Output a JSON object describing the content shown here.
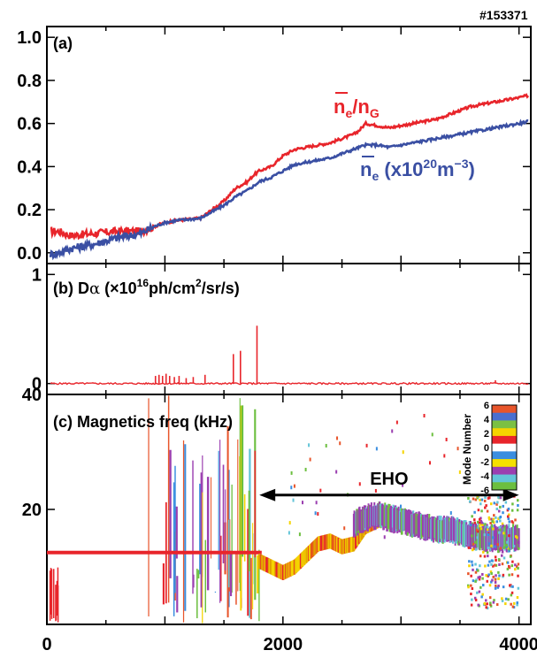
{
  "shot_number": "#153371",
  "x_axis": {
    "ticks": [
      0,
      2000,
      4000
    ],
    "range": [
      0,
      4100
    ]
  },
  "chart_data": [
    {
      "panel": "a",
      "type": "line",
      "label": "(a)",
      "xlim": [
        0,
        4100
      ],
      "ylim": [
        -0.05,
        1.05
      ],
      "y_ticks": [
        "0.0",
        "0.2",
        "0.4",
        "0.6",
        "0.8",
        "1.0"
      ],
      "y_tick_values": [
        0.0,
        0.2,
        0.4,
        0.6,
        0.8,
        1.0
      ],
      "series": [
        {
          "name_parts": {
            "bar": "n",
            "sub1": "e",
            "slash": "/n",
            "sub2": "G"
          },
          "color": "#e8252b",
          "x": [
            0,
            100,
            200,
            400,
            600,
            800,
            900,
            1000,
            1100,
            1300,
            1400,
            1500,
            1600,
            1700,
            1750,
            1800,
            1900,
            2000,
            2100,
            2200,
            2300,
            2400,
            2500,
            2600,
            2650,
            2700,
            2800,
            2900,
            3000,
            3100,
            3200,
            3300,
            3400,
            3500,
            3600,
            3700,
            3800,
            3900,
            4000,
            4080
          ],
          "y": [
            0.1,
            0.1,
            0.08,
            0.09,
            0.1,
            0.1,
            0.12,
            0.14,
            0.15,
            0.16,
            0.2,
            0.24,
            0.3,
            0.33,
            0.36,
            0.38,
            0.4,
            0.45,
            0.48,
            0.49,
            0.5,
            0.51,
            0.53,
            0.55,
            0.57,
            0.6,
            0.59,
            0.58,
            0.59,
            0.6,
            0.61,
            0.62,
            0.64,
            0.66,
            0.68,
            0.69,
            0.7,
            0.71,
            0.72,
            0.73
          ]
        },
        {
          "name_parts": {
            "bar": "n",
            "sub1": "e",
            "rest": " (x10",
            "sup1": "20",
            "rest2": "m",
            "sup2": "−3",
            "close": ")"
          },
          "color": "#3a4fa3",
          "x": [
            0,
            100,
            200,
            400,
            600,
            800,
            900,
            1000,
            1100,
            1300,
            1400,
            1500,
            1600,
            1700,
            1750,
            1800,
            1900,
            2000,
            2100,
            2200,
            2300,
            2400,
            2500,
            2600,
            2650,
            2700,
            2800,
            2900,
            3000,
            3100,
            3200,
            3300,
            3400,
            3500,
            3600,
            3700,
            3800,
            3900,
            4000,
            4080
          ],
          "y": [
            -0.01,
            0.0,
            0.02,
            0.04,
            0.07,
            0.09,
            0.12,
            0.14,
            0.15,
            0.16,
            0.19,
            0.22,
            0.26,
            0.29,
            0.31,
            0.33,
            0.35,
            0.38,
            0.41,
            0.42,
            0.43,
            0.44,
            0.46,
            0.48,
            0.49,
            0.5,
            0.5,
            0.49,
            0.5,
            0.51,
            0.52,
            0.53,
            0.54,
            0.55,
            0.56,
            0.57,
            0.58,
            0.59,
            0.6,
            0.61
          ]
        }
      ]
    },
    {
      "panel": "b",
      "type": "line",
      "label_parts": {
        "prefix": "(b) D",
        "alpha": "α",
        "mid": " (×10",
        "sup1": "16",
        "mid2": "ph/cm",
        "sup2": "2",
        "end": "/sr/s)"
      },
      "xlim": [
        0,
        4100
      ],
      "ylim": [
        -0.1,
        1.1
      ],
      "y_ticks": [
        "0",
        "1"
      ],
      "y_tick_values": [
        0,
        1
      ],
      "series": [
        {
          "color": "#e8252b",
          "baseline": 0.0,
          "spikes": [
            {
              "x": 920,
              "y": 0.07
            },
            {
              "x": 950,
              "y": 0.08
            },
            {
              "x": 980,
              "y": 0.07
            },
            {
              "x": 1010,
              "y": 0.09
            },
            {
              "x": 1040,
              "y": 0.07
            },
            {
              "x": 1080,
              "y": 0.06
            },
            {
              "x": 1120,
              "y": 0.07
            },
            {
              "x": 1180,
              "y": 0.05
            },
            {
              "x": 1240,
              "y": 0.06
            },
            {
              "x": 1340,
              "y": 0.08
            },
            {
              "x": 1580,
              "y": 0.27
            },
            {
              "x": 1640,
              "y": 0.3
            },
            {
              "x": 1780,
              "y": 0.53
            },
            {
              "x": 3800,
              "y": 0.03
            }
          ]
        }
      ]
    },
    {
      "panel": "c",
      "type": "scatter",
      "label": "(c) Magnetics freq (kHz)",
      "xlim": [
        0,
        4100
      ],
      "ylim": [
        0,
        40
      ],
      "y_ticks": [
        "20",
        "40"
      ],
      "y_tick_values": [
        20,
        40
      ],
      "annotation": {
        "text": "EHO",
        "x_start": 1800,
        "x_end": 4000,
        "y": 22.5
      },
      "legend": {
        "title": "Mode Number",
        "placement": "top-right",
        "ticks": [
          "6",
          "4",
          "2",
          "0",
          "-2",
          "-4",
          "-6"
        ],
        "colors": [
          "#e8552b",
          "#4a6fd0",
          "#7bc043",
          "#f5d400",
          "#e8252b",
          "#ffffff",
          "#3a8ee0",
          "#f5e000",
          "#9b3fb0",
          "#63c5d8",
          "#6cbf3f"
        ]
      },
      "series": [
        {
          "name": "n=0 line",
          "color": "#e8252b",
          "segments": [
            [
              0,
              1820,
              12.5
            ]
          ]
        },
        {
          "name": "EHO band",
          "color": "#e0c000",
          "x": [
            1800,
            1900,
            2000,
            2100,
            2200,
            2300,
            2400,
            2500,
            2600,
            2700,
            2800,
            2900,
            3000,
            3100,
            3200,
            3300,
            3400,
            3500,
            3550
          ],
          "y": [
            11.0,
            10.0,
            9.0,
            10.0,
            12.0,
            14.0,
            14.5,
            13.5,
            14.0,
            17.0,
            18.0,
            19.0,
            18.0,
            17.0,
            16.5,
            16.0,
            16.0,
            15.5,
            15.0
          ]
        },
        {
          "name": "purple band",
          "color": "#9b3fb0",
          "x": [
            2600,
            2700,
            2800,
            2900,
            3000,
            3100,
            3200,
            3300,
            3400,
            3500,
            3600,
            3700,
            3800,
            3900,
            4000
          ],
          "y": [
            17.5,
            18.5,
            19.0,
            18.5,
            18.0,
            17.5,
            17.0,
            16.5,
            16.5,
            16.0,
            15.5,
            15.0,
            15.0,
            15.0,
            15.0
          ]
        }
      ]
    }
  ]
}
